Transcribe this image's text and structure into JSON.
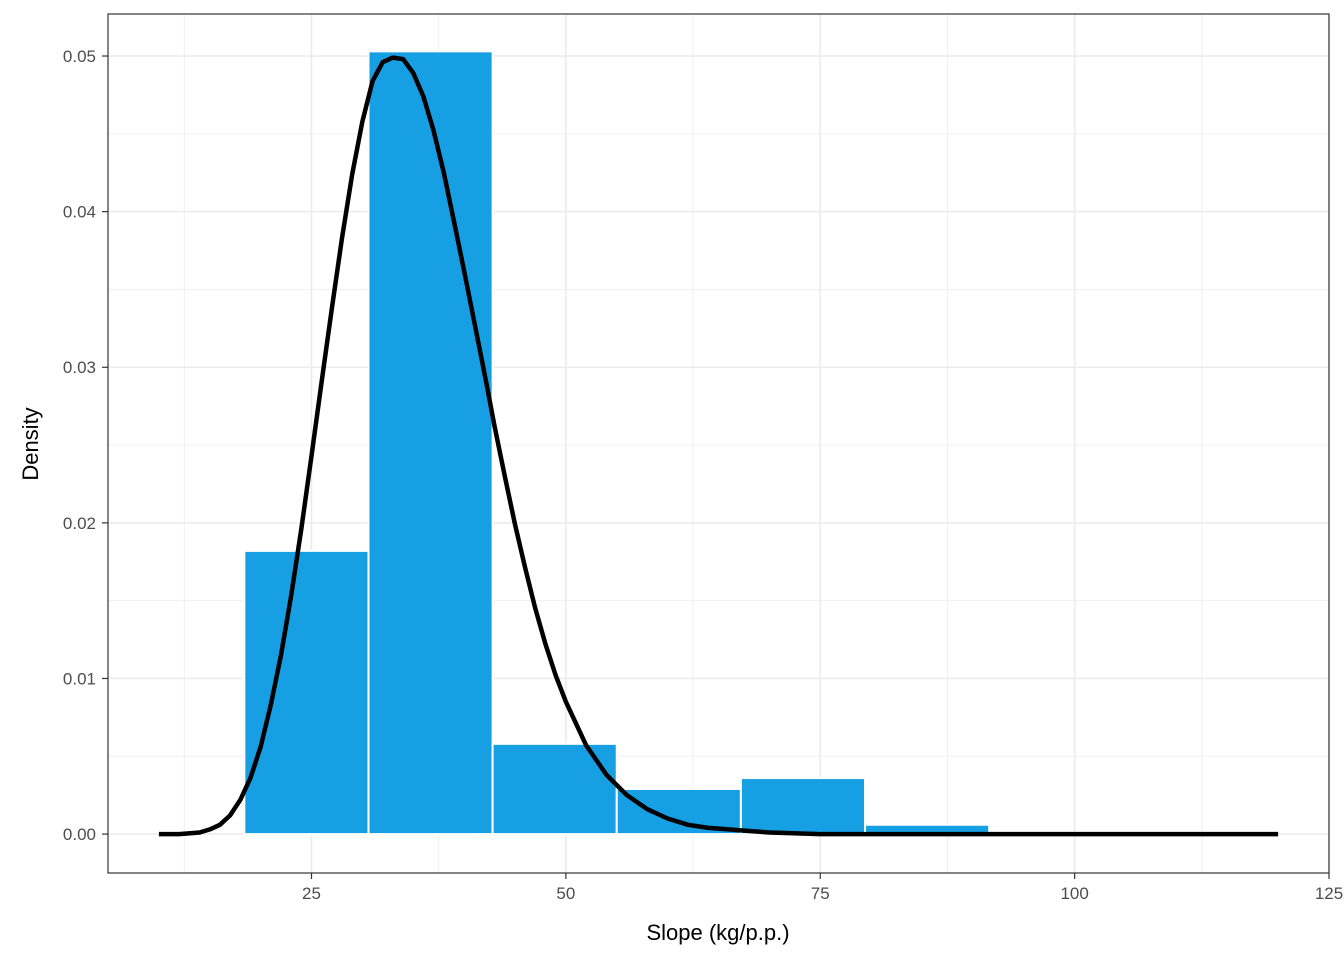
{
  "chart_data": {
    "type": "bar",
    "title": "",
    "xlabel": "Slope (kg/p.p.)",
    "ylabel": "Density",
    "xlim": [
      5,
      125
    ],
    "ylim": [
      -0.0025,
      0.0527
    ],
    "x_ticks": [
      25,
      50,
      75,
      100,
      125
    ],
    "y_ticks": [
      0.0,
      0.01,
      0.02,
      0.03,
      0.04,
      0.05
    ],
    "x_tick_labels": [
      "25",
      "50",
      "75",
      "100",
      "125"
    ],
    "y_tick_labels": [
      "0.00",
      "0.01",
      "0.02",
      "0.03",
      "0.04",
      "0.05"
    ],
    "grid": true,
    "bar_color": "#179fe4",
    "bar_edge_color": "#ffffff",
    "curve_color": "#000000",
    "bins": [
      {
        "x0": 18.4,
        "x1": 30.6,
        "density": 0.0182
      },
      {
        "x0": 30.6,
        "x1": 42.8,
        "density": 0.0503
      },
      {
        "x0": 42.8,
        "x1": 55.0,
        "density": 0.0058
      },
      {
        "x0": 55.0,
        "x1": 67.2,
        "density": 0.0029
      },
      {
        "x0": 67.2,
        "x1": 79.4,
        "density": 0.0036
      },
      {
        "x0": 79.4,
        "x1": 91.6,
        "density": 0.0006
      }
    ],
    "density_curve": {
      "x": [
        10,
        12,
        14,
        15,
        16,
        17,
        18,
        19,
        20,
        21,
        22,
        23,
        24,
        25,
        26,
        27,
        28,
        29,
        30,
        31,
        32,
        33,
        34,
        35,
        36,
        37,
        38,
        39,
        40,
        41,
        42,
        43,
        44,
        45,
        46,
        47,
        48,
        49,
        50,
        52,
        54,
        56,
        58,
        60,
        62,
        64,
        66,
        68,
        70,
        75,
        80,
        90,
        100,
        110,
        120
      ],
      "y": [
        0.0,
        0.0,
        0.0001,
        0.0003,
        0.0006,
        0.0012,
        0.0022,
        0.0036,
        0.0056,
        0.0083,
        0.0115,
        0.0153,
        0.0196,
        0.0243,
        0.0291,
        0.0338,
        0.0383,
        0.0424,
        0.0458,
        0.0484,
        0.0496,
        0.0499,
        0.0498,
        0.0489,
        0.0474,
        0.0452,
        0.0425,
        0.0394,
        0.0362,
        0.0329,
        0.0296,
        0.0262,
        0.023,
        0.0199,
        0.0171,
        0.0145,
        0.0122,
        0.0102,
        0.0085,
        0.0057,
        0.0038,
        0.0025,
        0.0016,
        0.001,
        0.0006,
        0.0004,
        0.0003,
        0.0002,
        0.0001,
        0.0,
        0.0,
        0.0,
        0.0,
        0.0,
        0.0
      ]
    }
  }
}
